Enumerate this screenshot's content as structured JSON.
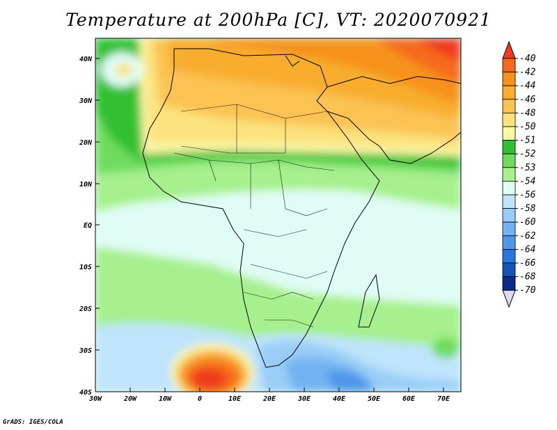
{
  "title": "Temperature at 200hPa [C], VT: 2020070921",
  "credit": "GrADS: IGES/COLA",
  "lat_labels": [
    "40N",
    "30N",
    "20N",
    "10N",
    "EQ",
    "10S",
    "20S",
    "30S",
    "40S"
  ],
  "lon_labels": [
    "30W",
    "20W",
    "10W",
    "0",
    "10E",
    "20E",
    "30E",
    "40E",
    "50E",
    "60E",
    "70E"
  ],
  "colorbar": {
    "levels": [
      "-40",
      "-42",
      "-44",
      "-46",
      "-48",
      "-50",
      "-51",
      "-52",
      "-53",
      "-54",
      "-56",
      "-58",
      "-60",
      "-62",
      "-64",
      "-66",
      "-68",
      "-70"
    ],
    "colors": [
      "#f03a1a",
      "#f56a1e",
      "#f7921f",
      "#f8ad2f",
      "#fbc352",
      "#fce27d",
      "#fbf5a6",
      "#32c033",
      "#6fdc5d",
      "#a6f08e",
      "#dffcf5",
      "#bfe4fb",
      "#99cdf8",
      "#72b2f2",
      "#4e96ea",
      "#2a76dc",
      "#1652b8",
      "#0a2a8c",
      "#0e0e6a",
      "#dcdcf7"
    ]
  }
}
